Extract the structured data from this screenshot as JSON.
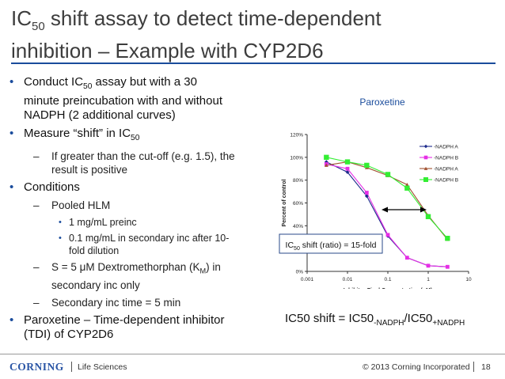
{
  "title": {
    "line1_pre": "IC",
    "line1_sub": "50",
    "line1_post": " shift assay to detect time-dependent",
    "line2": "inhibition – Example with CYP2D6"
  },
  "bullets": {
    "b1": {
      "pre": "Conduct IC",
      "sub": "50",
      "line1_post": " assay but with a 30",
      "line2": "minute preincubation with and without",
      "line3": "NADPH  (2 additional curves)"
    },
    "b2": {
      "pre": "Measure “shift” in IC",
      "sub": "50"
    },
    "b2a": {
      "line1": "If greater than the cut-off (e.g. 1.5), the",
      "line2": "result is positive"
    },
    "b3": "Conditions",
    "b3a": "Pooled HLM",
    "b3a1": "1 mg/mL preinc",
    "b3a2": {
      "line1": "0.1 mg/mL in secondary inc after 10-",
      "line2": "fold dilution"
    },
    "b3b": {
      "pre": "S = 5 μM  Dextromethorphan (K",
      "sub": "M",
      "post": ") in",
      "line2": "secondary inc only"
    },
    "b3c": "Secondary inc time = 5 min",
    "b4": {
      "line1": "Paroxetine – Time-dependent inhibitor",
      "line2": "(TDI) of CYP2D6"
    }
  },
  "annotation": {
    "pre": "IC",
    "sub": "50",
    "post": " shift (ratio) = 15-fold"
  },
  "formula": {
    "pre": "IC50 shift = IC50",
    "sub1": "-NADPH",
    "mid": "/IC50",
    "sub2": "+NADPH"
  },
  "footer": {
    "logo": "CORNING",
    "division": "Life Sciences",
    "copyright": "© 2013  Corning Incorporated",
    "page": "18"
  },
  "colors": {
    "accent": "#1a4c9c",
    "series_a": "#1e2b8c",
    "series_b": "#e62ee6",
    "series_c": "#a05030",
    "series_d": "#33ee33"
  },
  "chart_data": {
    "type": "scatter",
    "title": "Paroxetine",
    "xlabel": "Inhibitor Final Concentration (uM)",
    "ylabel": "Percent of control",
    "x_scale": "log",
    "xlim": [
      0.001,
      10
    ],
    "ylim": [
      0,
      1.2
    ],
    "x_ticks": [
      "0.001",
      "0.01",
      "0.1",
      "1",
      "10"
    ],
    "y_ticks": [
      "0%",
      "20%",
      "40%",
      "60%",
      "80%",
      "100%",
      "120%"
    ],
    "grid": false,
    "legend": "top-right",
    "x": [
      0.003,
      0.01,
      0.03,
      0.1,
      0.3,
      1,
      3
    ],
    "series": [
      {
        "name": "-NADPH A",
        "marker": "diamond",
        "color": "#1e2b8c",
        "values": [
          0.96,
          0.87,
          0.66,
          0.31,
          0.12,
          0.05,
          0.04
        ]
      },
      {
        "name": "-NADPH B",
        "marker": "square",
        "color": "#e62ee6",
        "values": [
          0.94,
          0.9,
          0.69,
          0.32,
          0.12,
          0.05,
          0.04
        ]
      },
      {
        "name": "-NADPH A",
        "marker": "triangle",
        "color": "#a05030",
        "values": [
          0.93,
          0.96,
          0.91,
          0.84,
          0.76,
          0.49,
          0.28
        ]
      },
      {
        "name": "-NADPH B",
        "marker": "square",
        "color": "#33ee33",
        "values": [
          1.0,
          0.96,
          0.93,
          0.85,
          0.73,
          0.48,
          0.29
        ]
      }
    ]
  }
}
